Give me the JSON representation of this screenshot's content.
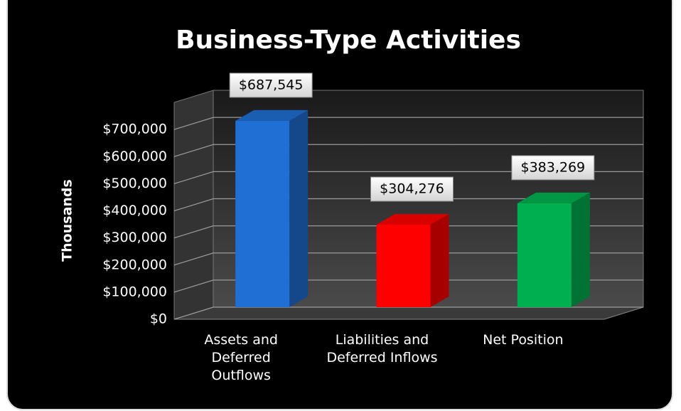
{
  "chart_data": {
    "type": "bar3d",
    "title": "Business-Type Activities",
    "ylabel": "Thousands",
    "categories": [
      "Assets and Deferred Outflows",
      "Liabilities and Deferred Inflows",
      "Net Position"
    ],
    "values": [
      687545,
      304276,
      383269
    ],
    "value_labels": [
      "$687,545",
      "$304,276",
      "$383,269"
    ],
    "colors": [
      "#1f6fd4",
      "#ff0000",
      "#00b050"
    ],
    "ylim": [
      0,
      800000
    ],
    "yticks": [
      {
        "value": 0,
        "label": "$0"
      },
      {
        "value": 100000,
        "label": "$100,000"
      },
      {
        "value": 200000,
        "label": "$200,000"
      },
      {
        "value": 300000,
        "label": "$300,000"
      },
      {
        "value": 400000,
        "label": "$400,000"
      },
      {
        "value": 500000,
        "label": "$500,000"
      },
      {
        "value": 600000,
        "label": "$600,000"
      },
      {
        "value": 700000,
        "label": "$700,000"
      }
    ],
    "grid": true
  }
}
